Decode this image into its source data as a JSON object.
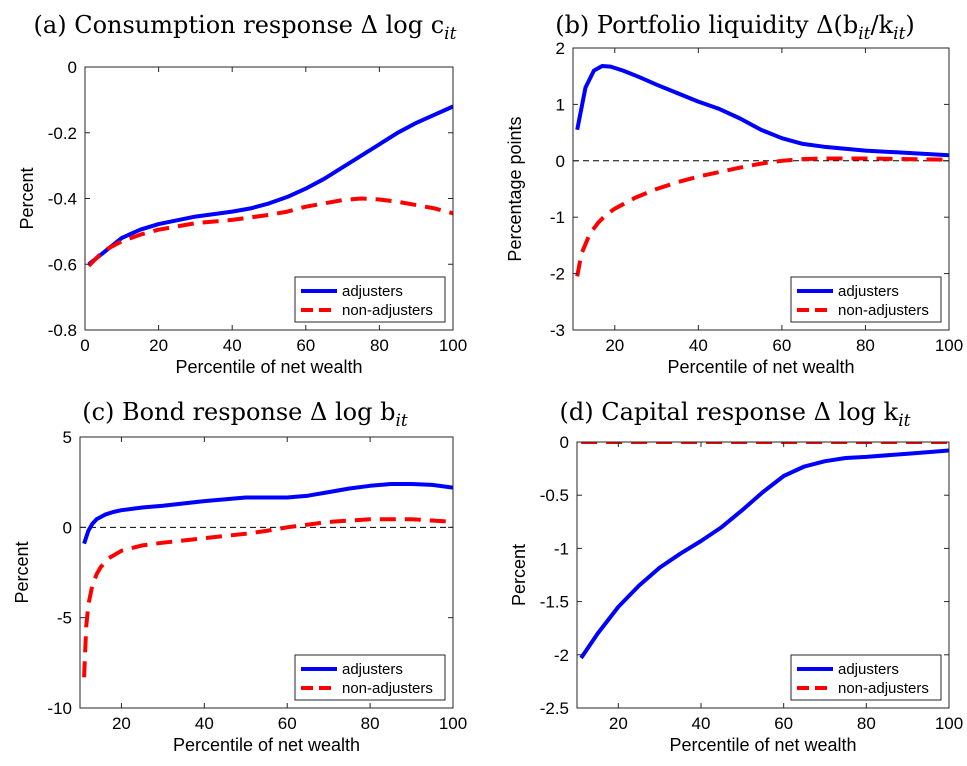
{
  "legend_labels": [
    "adjusters",
    "non-adjusters"
  ],
  "colors": {
    "adjusters": "#0000ff",
    "non_adjusters": "#ff0000",
    "zero_line": "#000000"
  },
  "chart_data": [
    {
      "panel": "a",
      "type": "line",
      "title_prefix": "(a) Consumption response ",
      "title_math": "Δ log c",
      "title_sub": "it",
      "title_suffix": "",
      "xlabel": "Percentile of net wealth",
      "ylabel": "Percent",
      "xlim": [
        0,
        100
      ],
      "ylim": [
        -0.8,
        0
      ],
      "xticks": [
        0,
        20,
        40,
        60,
        80,
        100
      ],
      "yticks": [
        -0.8,
        -0.6,
        -0.4,
        -0.2,
        0
      ],
      "ytick_labels": [
        "-0.8",
        "-0.6",
        "-0.4",
        "-0.2",
        "0"
      ],
      "grid": false,
      "legend_position": "bottom-right",
      "series": [
        {
          "name": "adjusters",
          "style": "solid",
          "x": [
            1,
            5,
            10,
            15,
            20,
            30,
            40,
            45,
            50,
            55,
            60,
            65,
            70,
            75,
            80,
            85,
            90,
            95,
            100
          ],
          "y": [
            -0.6,
            -0.565,
            -0.52,
            -0.495,
            -0.478,
            -0.455,
            -0.44,
            -0.43,
            -0.415,
            -0.395,
            -0.37,
            -0.34,
            -0.305,
            -0.27,
            -0.235,
            -0.2,
            -0.17,
            -0.145,
            -0.12
          ]
        },
        {
          "name": "non-adjusters",
          "style": "dashed",
          "x": [
            1,
            5,
            10,
            15,
            20,
            30,
            40,
            50,
            55,
            60,
            65,
            70,
            75,
            80,
            85,
            90,
            95,
            100
          ],
          "y": [
            -0.605,
            -0.56,
            -0.53,
            -0.51,
            -0.495,
            -0.475,
            -0.465,
            -0.45,
            -0.44,
            -0.425,
            -0.415,
            -0.405,
            -0.4,
            -0.403,
            -0.41,
            -0.42,
            -0.43,
            -0.445
          ]
        }
      ]
    },
    {
      "panel": "b",
      "type": "line",
      "title_prefix": "(b) Portfolio liquidity ",
      "title_math": "Δ(b",
      "title_sub": "it",
      "title_suffix": "/k",
      "title_sub2": "it",
      "title_end": ")",
      "xlabel": "Percentile of net wealth",
      "ylabel": "Percentage points",
      "xlim": [
        10,
        100
      ],
      "ylim": [
        -3,
        2
      ],
      "xticks": [
        20,
        40,
        60,
        80,
        100
      ],
      "yticks": [
        -3,
        -2,
        -1,
        0,
        1,
        2
      ],
      "ytick_labels": [
        "-3",
        "-2",
        "-1",
        "0",
        "1",
        "2"
      ],
      "grid": false,
      "legend_position": "bottom-right",
      "series": [
        {
          "name": "adjusters",
          "style": "solid",
          "x": [
            11,
            13,
            15,
            17,
            19,
            22,
            26,
            30,
            35,
            40,
            45,
            50,
            55,
            60,
            65,
            70,
            80,
            90,
            100
          ],
          "y": [
            0.55,
            1.3,
            1.6,
            1.68,
            1.67,
            1.6,
            1.48,
            1.35,
            1.2,
            1.05,
            0.92,
            0.75,
            0.55,
            0.4,
            0.3,
            0.25,
            0.18,
            0.14,
            0.1
          ]
        },
        {
          "name": "non-adjusters",
          "style": "dashed",
          "x": [
            11,
            12,
            14,
            16,
            18,
            20,
            25,
            30,
            35,
            40,
            45,
            50,
            55,
            60,
            65,
            70,
            80,
            90,
            100
          ],
          "y": [
            -2.05,
            -1.65,
            -1.3,
            -1.1,
            -0.95,
            -0.85,
            -0.65,
            -0.5,
            -0.38,
            -0.28,
            -0.2,
            -0.12,
            -0.05,
            0.0,
            0.03,
            0.04,
            0.04,
            0.03,
            0.02
          ]
        }
      ]
    },
    {
      "panel": "c",
      "type": "line",
      "title_prefix": "(c) Bond response ",
      "title_math": "Δ log b",
      "title_sub": "it",
      "title_suffix": "",
      "xlabel": "Percentile of net wealth",
      "ylabel": "Percent",
      "xlim": [
        10,
        100
      ],
      "ylim": [
        -10,
        5
      ],
      "xticks": [
        20,
        40,
        60,
        80,
        100
      ],
      "yticks": [
        -10,
        -5,
        0,
        5
      ],
      "ytick_labels": [
        "-10",
        "-5",
        "0",
        "5"
      ],
      "grid": false,
      "legend_position": "bottom-right",
      "series": [
        {
          "name": "adjusters",
          "style": "solid",
          "x": [
            11,
            12,
            13,
            14,
            16,
            18,
            20,
            25,
            30,
            40,
            50,
            55,
            60,
            65,
            70,
            75,
            80,
            85,
            90,
            95,
            100
          ],
          "y": [
            -0.9,
            -0.2,
            0.2,
            0.45,
            0.7,
            0.85,
            0.95,
            1.1,
            1.2,
            1.45,
            1.65,
            1.65,
            1.65,
            1.75,
            1.95,
            2.15,
            2.3,
            2.4,
            2.4,
            2.35,
            2.2
          ]
        },
        {
          "name": "non-adjusters",
          "style": "dashed",
          "x": [
            11,
            11.5,
            12,
            13,
            14,
            15,
            17,
            20,
            25,
            30,
            40,
            50,
            55,
            60,
            70,
            80,
            90,
            100
          ],
          "y": [
            -8.3,
            -5.5,
            -4.3,
            -3.2,
            -2.6,
            -2.2,
            -1.7,
            -1.3,
            -1.0,
            -0.85,
            -0.6,
            -0.35,
            -0.2,
            0.0,
            0.3,
            0.45,
            0.45,
            0.3
          ]
        }
      ]
    },
    {
      "panel": "d",
      "type": "line",
      "title_prefix": "(d) Capital response ",
      "title_math": "Δ log k",
      "title_sub": "it",
      "title_suffix": "",
      "xlabel": "Percentile of net wealth",
      "ylabel": "Percent",
      "xlim": [
        10,
        100
      ],
      "ylim": [
        -2.5,
        0
      ],
      "xticks": [
        20,
        40,
        60,
        80,
        100
      ],
      "yticks": [
        -2.5,
        -2,
        -1.5,
        -1,
        -0.5,
        0
      ],
      "ytick_labels": [
        "-2.5",
        "-2",
        "-1.5",
        "-1",
        "-0.5",
        "0"
      ],
      "grid": false,
      "legend_position": "bottom-right",
      "series": [
        {
          "name": "adjusters",
          "style": "solid",
          "x": [
            11,
            15,
            20,
            25,
            30,
            35,
            40,
            45,
            50,
            55,
            60,
            65,
            70,
            75,
            80,
            90,
            100
          ],
          "y": [
            -2.03,
            -1.8,
            -1.55,
            -1.35,
            -1.18,
            -1.05,
            -0.93,
            -0.8,
            -0.64,
            -0.47,
            -0.32,
            -0.23,
            -0.18,
            -0.15,
            -0.14,
            -0.11,
            -0.08
          ]
        },
        {
          "name": "non-adjusters",
          "style": "dashed",
          "x": [
            11,
            30,
            50,
            70,
            100
          ],
          "y": [
            0,
            0,
            0,
            0,
            0
          ]
        }
      ]
    }
  ]
}
